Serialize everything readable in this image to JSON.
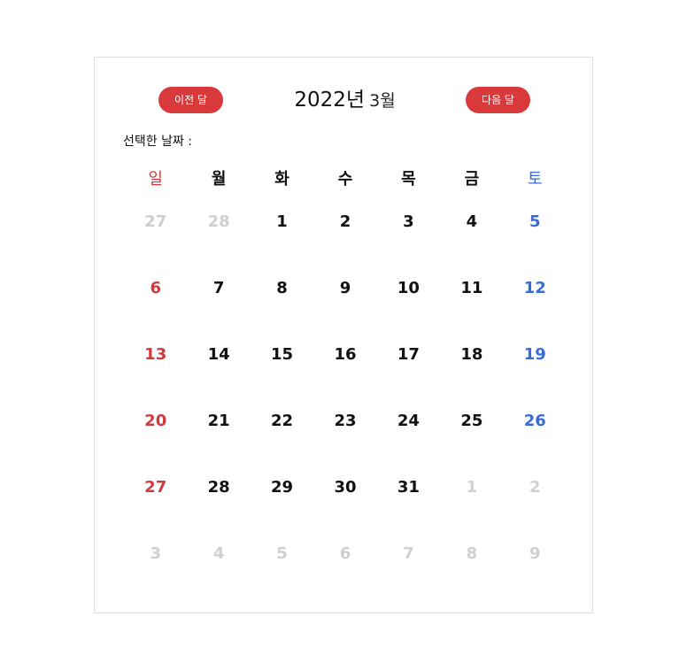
{
  "header": {
    "prev_label": "이전 달",
    "next_label": "다음 달",
    "year": "2022년",
    "month": "3월"
  },
  "selected_date_label": "선택한 날짜 :",
  "weekdays": [
    "일",
    "월",
    "화",
    "수",
    "목",
    "금",
    "토"
  ],
  "weeks": [
    [
      {
        "d": "27",
        "cur": false
      },
      {
        "d": "28",
        "cur": false
      },
      {
        "d": "1",
        "cur": true
      },
      {
        "d": "2",
        "cur": true
      },
      {
        "d": "3",
        "cur": true
      },
      {
        "d": "4",
        "cur": true
      },
      {
        "d": "5",
        "cur": true
      }
    ],
    [
      {
        "d": "6",
        "cur": true
      },
      {
        "d": "7",
        "cur": true
      },
      {
        "d": "8",
        "cur": true
      },
      {
        "d": "9",
        "cur": true
      },
      {
        "d": "10",
        "cur": true
      },
      {
        "d": "11",
        "cur": true
      },
      {
        "d": "12",
        "cur": true
      }
    ],
    [
      {
        "d": "13",
        "cur": true
      },
      {
        "d": "14",
        "cur": true
      },
      {
        "d": "15",
        "cur": true
      },
      {
        "d": "16",
        "cur": true
      },
      {
        "d": "17",
        "cur": true
      },
      {
        "d": "18",
        "cur": true
      },
      {
        "d": "19",
        "cur": true
      }
    ],
    [
      {
        "d": "20",
        "cur": true
      },
      {
        "d": "21",
        "cur": true
      },
      {
        "d": "22",
        "cur": true
      },
      {
        "d": "23",
        "cur": true
      },
      {
        "d": "24",
        "cur": true
      },
      {
        "d": "25",
        "cur": true
      },
      {
        "d": "26",
        "cur": true
      }
    ],
    [
      {
        "d": "27",
        "cur": true
      },
      {
        "d": "28",
        "cur": true
      },
      {
        "d": "29",
        "cur": true
      },
      {
        "d": "30",
        "cur": true
      },
      {
        "d": "31",
        "cur": true
      },
      {
        "d": "1",
        "cur": false
      },
      {
        "d": "2",
        "cur": false
      }
    ],
    [
      {
        "d": "3",
        "cur": false
      },
      {
        "d": "4",
        "cur": false
      },
      {
        "d": "5",
        "cur": false
      },
      {
        "d": "6",
        "cur": false
      },
      {
        "d": "7",
        "cur": false
      },
      {
        "d": "8",
        "cur": false
      },
      {
        "d": "9",
        "cur": false
      }
    ]
  ],
  "colors": {
    "accent": "#d9393b",
    "sunday": "#cf3a3c",
    "saturday": "#3a6bd3",
    "other_month": "#cfcfcf",
    "border": "#dcdcdc"
  }
}
